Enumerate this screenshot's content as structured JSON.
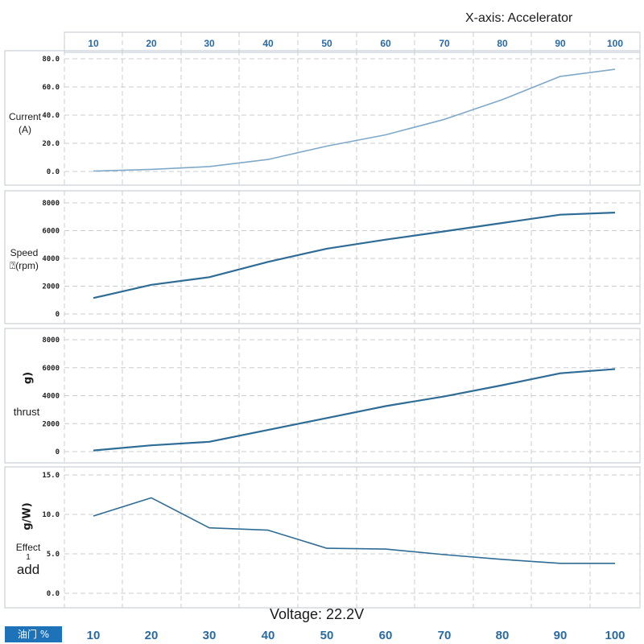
{
  "figure": {
    "xaxis_title": "X-axis: Accelerator",
    "voltage_label": "Voltage: 22.2V",
    "footer_badge": "油门 %"
  },
  "colors": {
    "line_light": "#7fa9c9",
    "line_dark": "#2e6c96",
    "tick_blue": "#2a6aa3",
    "badge_blue": "#1d72b8"
  },
  "panel_labels": {
    "current": {
      "line1": "Current",
      "line2": "(A)"
    },
    "speed": {
      "line1": "Speed",
      "line2": "⍰(rpm)"
    },
    "thrust": {
      "rot": "g)",
      "word": "thrust"
    },
    "effect": {
      "rot": "g/W)",
      "word": "Effect",
      "small": "1",
      "big": "add"
    }
  },
  "chart_data": [
    {
      "type": "line",
      "x": [
        10,
        20,
        30,
        40,
        50,
        60,
        70,
        80,
        90,
        100
      ],
      "x_tick_labels": [
        "10",
        "20",
        "30",
        "40",
        "50",
        "60",
        "70",
        "80",
        "90",
        "100"
      ],
      "series": [
        {
          "values": [
            0.3,
            1.5,
            3.5,
            8.5,
            18.0,
            26.0,
            37.0,
            51.0,
            67.5,
            72.5
          ]
        }
      ],
      "ylim": [
        0,
        80
      ],
      "y_tick_labels": [
        "0.0",
        "20.0",
        "40.0",
        "60.0",
        "80.0"
      ],
      "ylabel": "Current (A)",
      "grid": true
    },
    {
      "type": "line",
      "x": [
        10,
        20,
        30,
        40,
        50,
        60,
        70,
        80,
        90,
        100
      ],
      "series": [
        {
          "values": [
            1150,
            2100,
            2650,
            3750,
            4700,
            5350,
            5950,
            6550,
            7150,
            7300
          ]
        }
      ],
      "ylim": [
        0,
        8000
      ],
      "y_tick_labels": [
        "0",
        "2000",
        "4000",
        "6000",
        "8000"
      ],
      "ylabel": "Speed ⍰(rpm)",
      "grid": true
    },
    {
      "type": "line",
      "x": [
        10,
        20,
        30,
        40,
        50,
        60,
        70,
        80,
        90,
        100
      ],
      "series": [
        {
          "values": [
            80,
            450,
            700,
            1550,
            2400,
            3250,
            3950,
            4750,
            5600,
            5900
          ]
        }
      ],
      "ylim": [
        0,
        8000
      ],
      "y_tick_labels": [
        "0",
        "2000",
        "4000",
        "6000",
        "8000"
      ],
      "ylabel": "thrust",
      "grid": true
    },
    {
      "type": "line",
      "x": [
        10,
        20,
        30,
        40,
        50,
        60,
        70,
        80,
        90,
        100
      ],
      "x_tick_labels": [
        "10",
        "20",
        "30",
        "40",
        "50",
        "60",
        "70",
        "80",
        "90",
        "100"
      ],
      "series": [
        {
          "values": [
            9.8,
            12.1,
            8.3,
            8.0,
            5.7,
            5.6,
            4.9,
            4.3,
            3.8,
            3.8
          ]
        }
      ],
      "ylim": [
        0,
        15
      ],
      "y_tick_labels": [
        "0.0",
        "5.0",
        "10.0",
        "15.0"
      ],
      "ylabel": "Effect",
      "grid": true
    }
  ]
}
